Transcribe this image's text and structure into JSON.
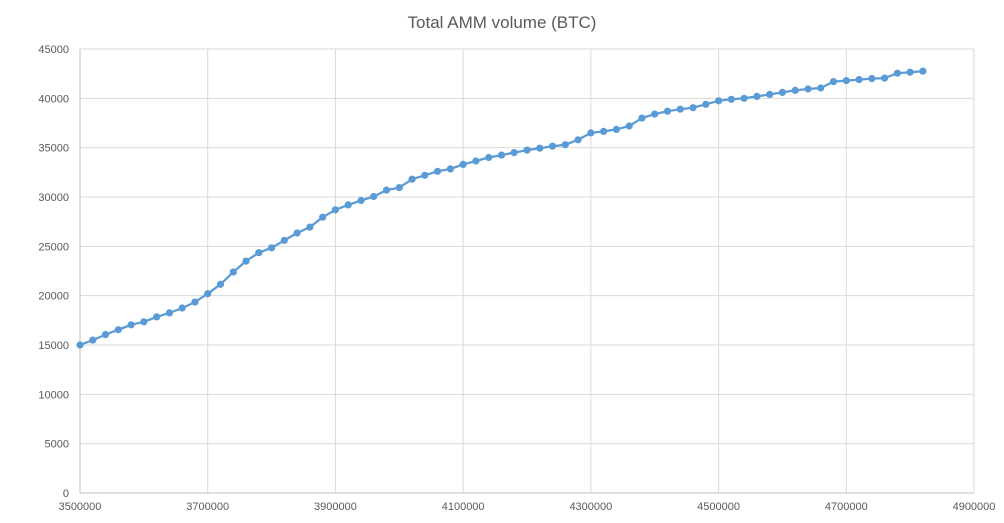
{
  "chart_data": {
    "type": "line",
    "title": "Total AMM volume (BTC)",
    "xlabel": "",
    "ylabel": "",
    "xlim": [
      3500000,
      4900000
    ],
    "ylim": [
      0,
      45000
    ],
    "x_ticks": [
      "3500000",
      "3700000",
      "3900000",
      "4100000",
      "4300000",
      "4500000",
      "4700000",
      "4900000"
    ],
    "y_ticks": [
      "0",
      "5000",
      "10000",
      "15000",
      "20000",
      "25000",
      "30000",
      "35000",
      "40000",
      "45000"
    ],
    "grid": true,
    "legend": "none",
    "series": [
      {
        "name": "Total AMM volume",
        "color": "#5b9bd5",
        "points": [
          [
            3500000,
            15000
          ],
          [
            3520000,
            15500
          ],
          [
            3540000,
            16050
          ],
          [
            3560000,
            16550
          ],
          [
            3580000,
            17050
          ],
          [
            3600000,
            17350
          ],
          [
            3620000,
            17850
          ],
          [
            3640000,
            18250
          ],
          [
            3660000,
            18750
          ],
          [
            3680000,
            19350
          ],
          [
            3700000,
            20200
          ],
          [
            3720000,
            21150
          ],
          [
            3740000,
            22400
          ],
          [
            3760000,
            23500
          ],
          [
            3780000,
            24350
          ],
          [
            3800000,
            24850
          ],
          [
            3820000,
            25600
          ],
          [
            3840000,
            26350
          ],
          [
            3860000,
            26950
          ],
          [
            3880000,
            27950
          ],
          [
            3900000,
            28700
          ],
          [
            3920000,
            29200
          ],
          [
            3940000,
            29650
          ],
          [
            3960000,
            30050
          ],
          [
            3980000,
            30700
          ],
          [
            4000000,
            30950
          ],
          [
            4020000,
            31800
          ],
          [
            4040000,
            32200
          ],
          [
            4060000,
            32600
          ],
          [
            4080000,
            32850
          ],
          [
            4100000,
            33300
          ],
          [
            4120000,
            33650
          ],
          [
            4140000,
            34000
          ],
          [
            4160000,
            34250
          ],
          [
            4180000,
            34500
          ],
          [
            4200000,
            34750
          ],
          [
            4220000,
            34950
          ],
          [
            4240000,
            35150
          ],
          [
            4260000,
            35300
          ],
          [
            4280000,
            35800
          ],
          [
            4300000,
            36500
          ],
          [
            4320000,
            36650
          ],
          [
            4340000,
            36850
          ],
          [
            4360000,
            37200
          ],
          [
            4380000,
            38000
          ],
          [
            4400000,
            38400
          ],
          [
            4420000,
            38700
          ],
          [
            4440000,
            38900
          ],
          [
            4460000,
            39050
          ],
          [
            4480000,
            39400
          ],
          [
            4500000,
            39750
          ],
          [
            4520000,
            39900
          ],
          [
            4540000,
            40000
          ],
          [
            4560000,
            40200
          ],
          [
            4580000,
            40400
          ],
          [
            4600000,
            40600
          ],
          [
            4620000,
            40800
          ],
          [
            4640000,
            40950
          ],
          [
            4660000,
            41050
          ],
          [
            4680000,
            41700
          ],
          [
            4700000,
            41800
          ],
          [
            4720000,
            41900
          ],
          [
            4740000,
            42000
          ],
          [
            4760000,
            42050
          ],
          [
            4780000,
            42550
          ],
          [
            4800000,
            42650
          ],
          [
            4820000,
            42750
          ]
        ]
      }
    ]
  }
}
